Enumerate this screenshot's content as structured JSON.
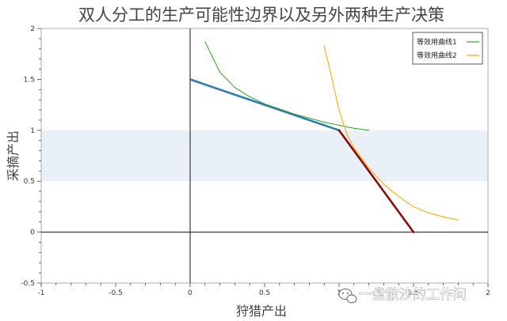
{
  "chart_data": {
    "type": "line",
    "title": "双人分工的生产可能性边界以及另外两种生产决策",
    "xlabel": "狩猎产出",
    "ylabel": "采摘产出",
    "xlim": [
      -1,
      2
    ],
    "ylim": [
      -0.5,
      2
    ],
    "x_ticks": [
      -1,
      -0.5,
      0,
      0.5,
      1,
      1.5,
      2
    ],
    "x_tick_labels": [
      "-1",
      "-0.5",
      "0",
      "0.5",
      "1",
      "1.5",
      "2"
    ],
    "y_ticks": [
      -0.5,
      0,
      0.5,
      1,
      1.5,
      2
    ],
    "y_tick_labels": [
      "-0.5",
      "0",
      "0.5",
      "1",
      "1.5",
      "2"
    ],
    "shaded_band": {
      "y_from": 0.5,
      "y_to": 1.0,
      "color": "#eaf0f7"
    },
    "grid": false,
    "legend_position": "top-right",
    "series": [
      {
        "role": "frontier-segment",
        "color": "#2e7bb0",
        "width": 2.6,
        "x": [
          0,
          1
        ],
        "y": [
          1.5,
          1
        ]
      },
      {
        "role": "frontier-segment",
        "color": "#8b0d0d",
        "width": 2.6,
        "x": [
          1,
          1.5
        ],
        "y": [
          1,
          0
        ]
      },
      {
        "name": "等效用曲线1",
        "color": "#33a02c",
        "width": 1,
        "x": [
          0.1,
          0.2,
          0.3,
          0.4,
          0.5,
          0.6,
          0.7,
          0.8,
          0.9,
          1.0,
          1.1,
          1.2
        ],
        "y": [
          1.87,
          1.57,
          1.42,
          1.33,
          1.26,
          1.21,
          1.16,
          1.12,
          1.08,
          1.05,
          1.02,
          1.0
        ]
      },
      {
        "name": "等效用曲线2",
        "color": "#f0a800",
        "width": 1,
        "x": [
          0.9,
          0.95,
          1.0,
          1.05,
          1.1,
          1.2,
          1.3,
          1.4,
          1.5,
          1.6,
          1.7,
          1.8
        ],
        "y": [
          1.83,
          1.52,
          1.2,
          0.97,
          0.83,
          0.63,
          0.47,
          0.35,
          0.25,
          0.19,
          0.15,
          0.12
        ]
      }
    ]
  },
  "watermark": {
    "text": "一盘散沙的工作间",
    "icon": "wechat-icon"
  }
}
